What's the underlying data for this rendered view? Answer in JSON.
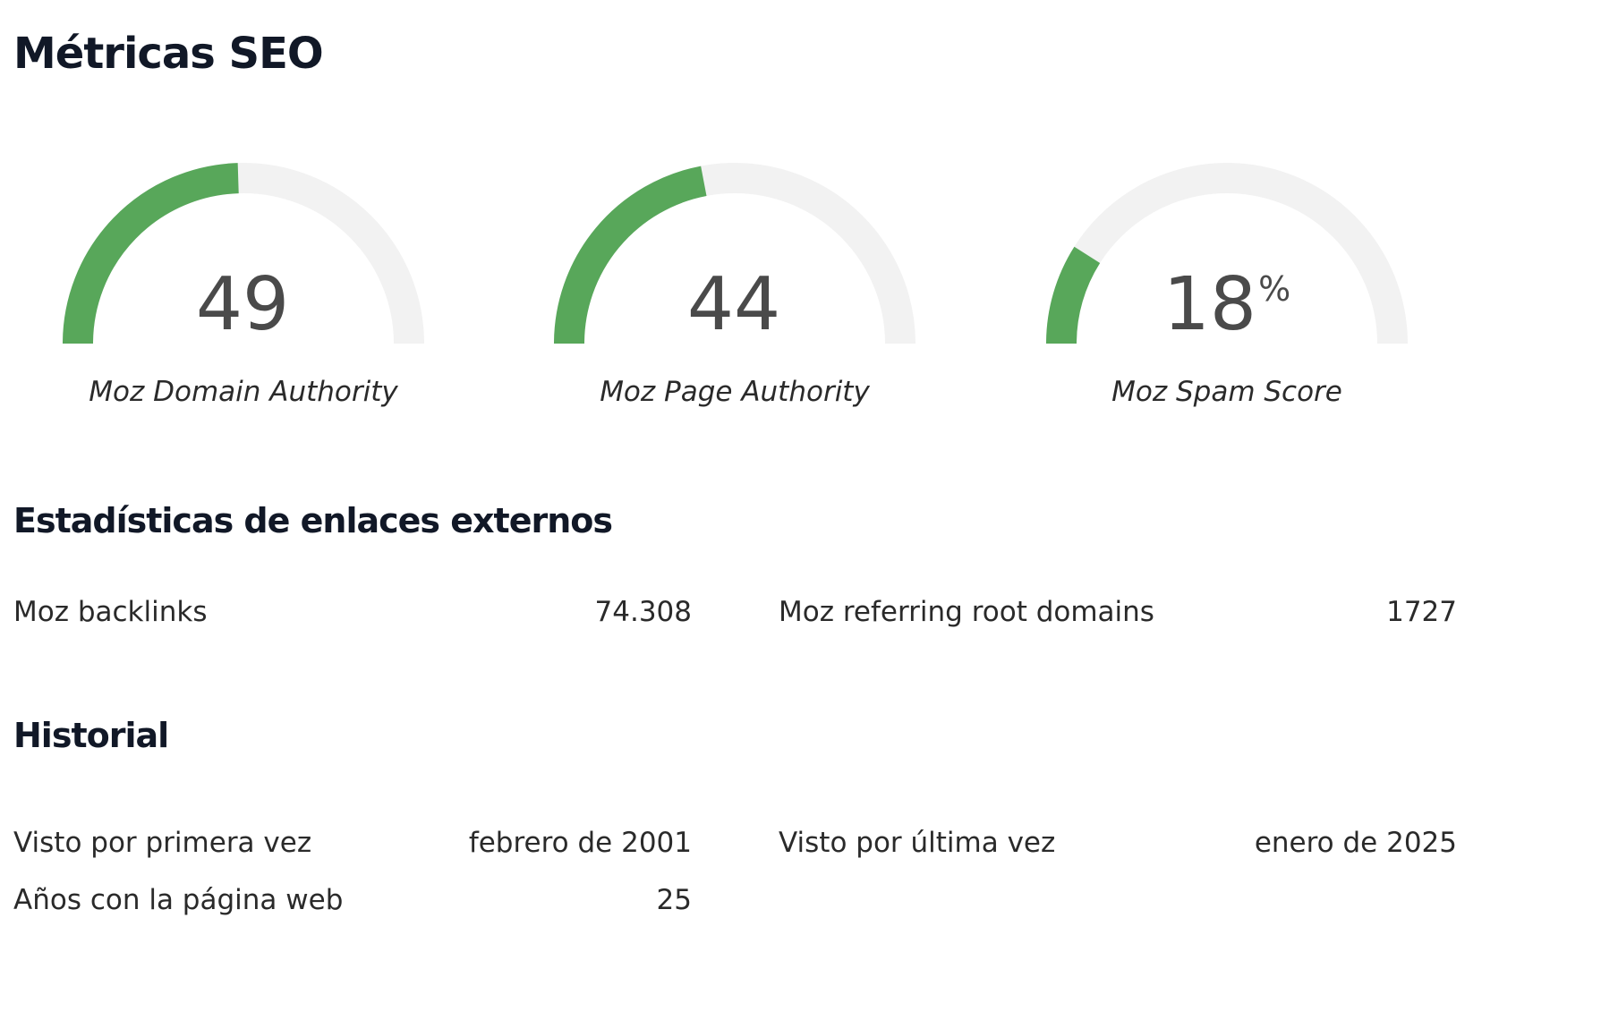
{
  "title": "Métricas SEO",
  "gauges": [
    {
      "label": "Moz Domain Authority",
      "value": "49",
      "unit": "",
      "fraction": 0.49
    },
    {
      "label": "Moz Page Authority",
      "value": "44",
      "unit": "",
      "fraction": 0.44
    },
    {
      "label": "Moz Spam Score",
      "value": "18",
      "unit": "%",
      "fraction": 0.18
    }
  ],
  "links": {
    "heading": "Estadísticas de enlaces externos",
    "backlinks_label": "Moz backlinks",
    "backlinks_value": "74.308",
    "root_domains_label": "Moz referring root domains",
    "root_domains_value": "1727"
  },
  "history": {
    "heading": "Historial",
    "first_seen_label": "Visto por primera vez",
    "first_seen_value": "febrero de 2001",
    "last_seen_label": "Visto por última vez",
    "last_seen_value": "enero de 2025",
    "years_label": "Años con la página web",
    "years_value": "25"
  },
  "colors": {
    "gauge_fill": "#58a75a",
    "gauge_track": "#f2f2f2"
  }
}
